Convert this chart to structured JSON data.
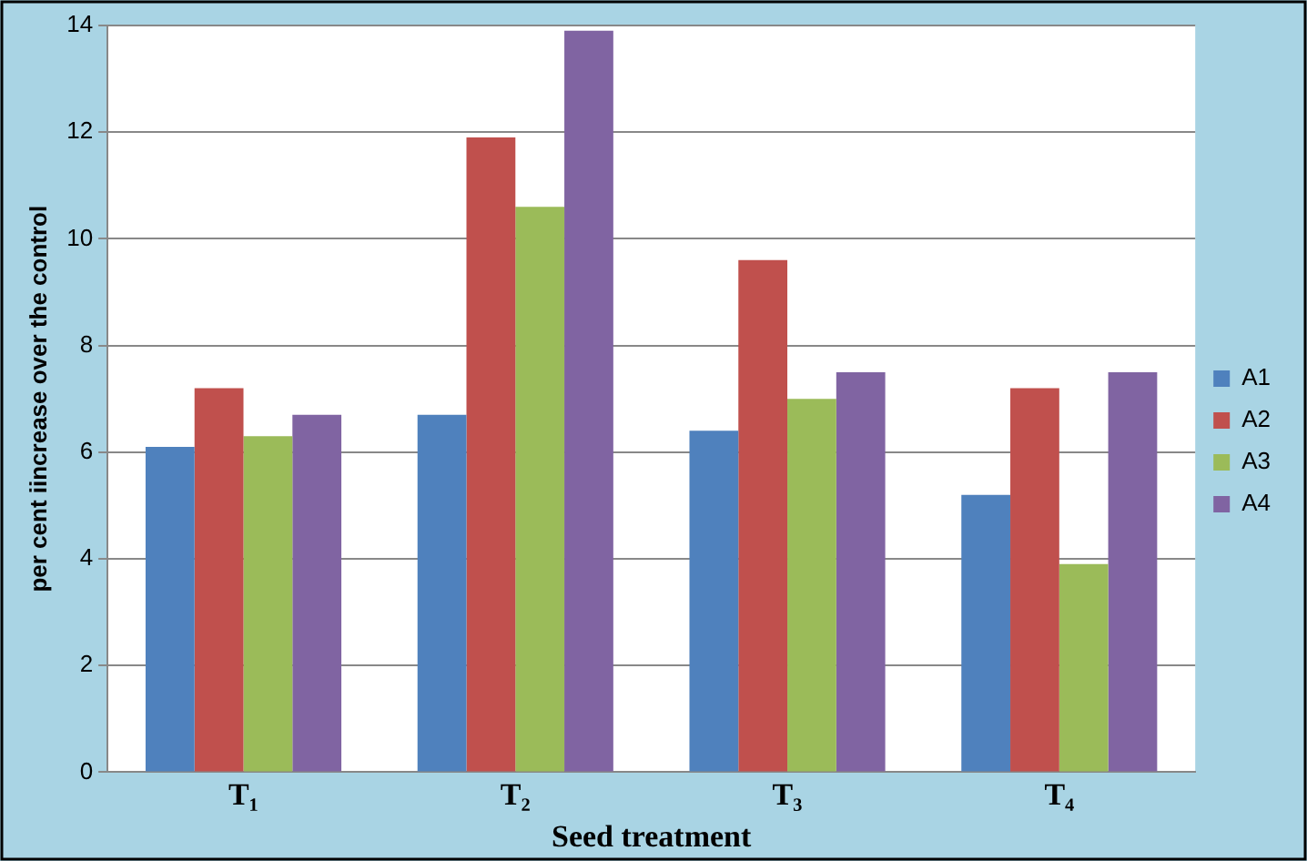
{
  "chart_data": {
    "type": "bar",
    "xlabel": "Seed treatment",
    "ylabel": "per cent iincrease over the control",
    "categories": [
      "T₁",
      "T₂",
      "T₃",
      "T₄"
    ],
    "series": [
      {
        "name": "A1",
        "color": "#4f81bd",
        "values": [
          6.1,
          6.7,
          6.4,
          5.2
        ]
      },
      {
        "name": "A2",
        "color": "#c0504d",
        "values": [
          7.2,
          11.9,
          9.6,
          7.2
        ]
      },
      {
        "name": "A3",
        "color": "#9bbb59",
        "values": [
          6.3,
          10.6,
          7.0,
          3.9
        ]
      },
      {
        "name": "A4",
        "color": "#8064a2",
        "values": [
          6.7,
          13.9,
          7.5,
          7.5
        ]
      }
    ],
    "ylim": [
      0,
      14
    ],
    "yticks": [
      0,
      2,
      4,
      6,
      8,
      10,
      12,
      14
    ],
    "grid": "y",
    "legend": "right"
  }
}
